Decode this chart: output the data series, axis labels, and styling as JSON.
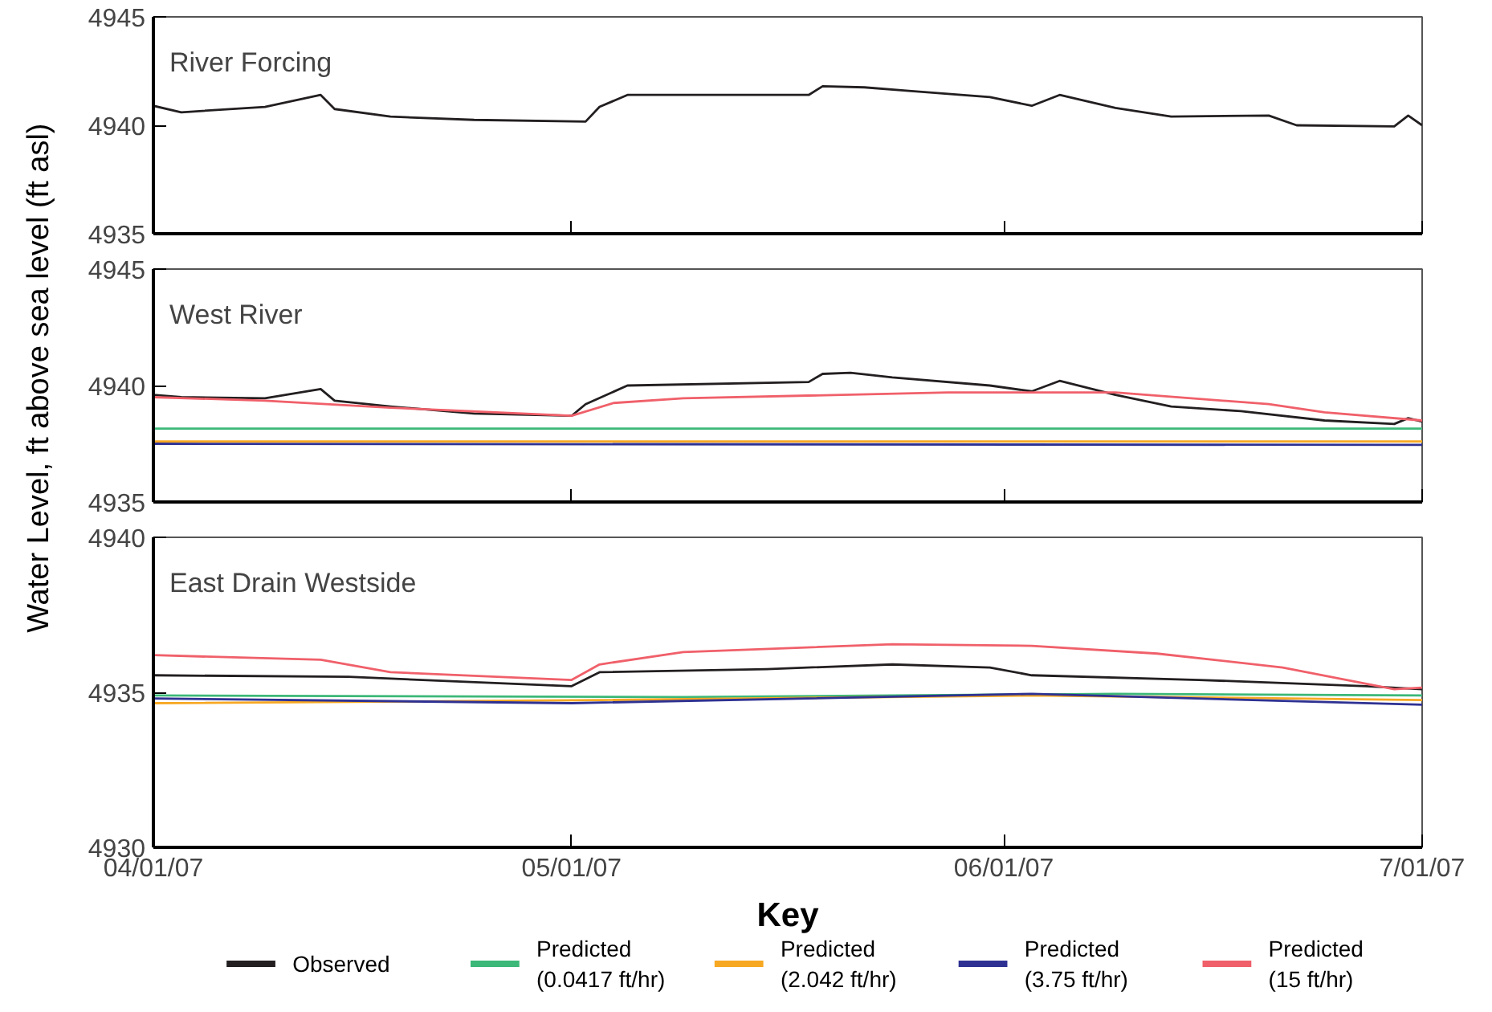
{
  "chart_data": [
    {
      "type": "line",
      "title": "River Forcing",
      "xlim": [
        "2007-04-01",
        "2007-07-01"
      ],
      "xticks": [
        {
          "value": "2007-04-01",
          "label": null
        },
        {
          "value": "2007-05-01",
          "label": null
        },
        {
          "value": "2007-06-01",
          "label": null
        },
        {
          "value": "2007-07-01",
          "label": null
        }
      ],
      "ylim": [
        4935,
        4945
      ],
      "yticks": [
        4935,
        4940,
        4945
      ],
      "tick_labels": "y",
      "grid": false,
      "legend": false,
      "series": [
        {
          "color": "#231f20",
          "x": [
            "2007-04-01",
            "2007-04-03",
            "2007-04-09",
            "2007-04-13",
            "2007-04-14",
            "2007-04-18",
            "2007-04-24",
            "2007-05-02",
            "2007-05-03",
            "2007-05-05",
            "2007-05-18",
            "2007-05-19",
            "2007-05-22",
            "2007-05-25",
            "2007-05-31",
            "2007-06-03",
            "2007-06-05",
            "2007-06-09",
            "2007-06-13",
            "2007-06-20",
            "2007-06-22",
            "2007-06-29",
            "2007-06-30",
            "2007-07-01"
          ],
          "values": [
            4940.9,
            4940.6,
            4940.85,
            4941.4,
            4940.75,
            4940.4,
            4940.25,
            4940.17,
            4940.85,
            4941.4,
            4941.4,
            4941.8,
            4941.75,
            4941.6,
            4941.3,
            4940.9,
            4941.4,
            4940.8,
            4940.4,
            4940.45,
            4940.0,
            4939.95,
            4940.45,
            4940.0
          ]
        }
      ]
    },
    {
      "type": "line",
      "title": "West River",
      "ylabel": "Water Level, ft above sea level (ft asl)",
      "xlim": [
        "2007-04-01",
        "2007-07-01"
      ],
      "xticks": [
        {
          "value": "2007-04-01",
          "label": null
        },
        {
          "value": "2007-05-01",
          "label": null
        },
        {
          "value": "2007-06-01",
          "label": null
        },
        {
          "value": "2007-07-01",
          "label": null
        }
      ],
      "ylim": [
        4935,
        4945
      ],
      "yticks": [
        4935,
        4940,
        4945
      ],
      "tick_labels": "y",
      "grid": false,
      "legend": false,
      "series": [
        {
          "color": "#3cb878",
          "x": [
            "2007-04-01",
            "2007-07-01"
          ],
          "values": [
            4938.15,
            4938.15
          ]
        },
        {
          "color": "#f7a823",
          "x": [
            "2007-04-01",
            "2007-07-01"
          ],
          "values": [
            4937.6,
            4937.6
          ]
        },
        {
          "color": "#2e3192",
          "x": [
            "2007-04-01",
            "2007-07-01"
          ],
          "values": [
            4937.5,
            4937.45
          ]
        },
        {
          "color": "#231f20",
          "x": [
            "2007-04-01",
            "2007-04-03",
            "2007-04-09",
            "2007-04-13",
            "2007-04-14",
            "2007-04-18",
            "2007-04-24",
            "2007-05-01",
            "2007-05-02",
            "2007-05-05",
            "2007-05-18",
            "2007-05-19",
            "2007-05-21",
            "2007-05-24",
            "2007-05-31",
            "2007-06-03",
            "2007-06-05",
            "2007-06-09",
            "2007-06-13",
            "2007-06-18",
            "2007-06-24",
            "2007-06-29",
            "2007-06-30",
            "2007-07-01"
          ],
          "values": [
            4939.6,
            4939.5,
            4939.45,
            4939.85,
            4939.35,
            4939.1,
            4938.8,
            4938.7,
            4939.2,
            4940.0,
            4940.15,
            4940.5,
            4940.55,
            4940.35,
            4940.0,
            4939.75,
            4940.2,
            4939.6,
            4939.1,
            4938.9,
            4938.5,
            4938.35,
            4938.6,
            4938.45
          ]
        },
        {
          "color": "#f0606a",
          "x": [
            "2007-04-01",
            "2007-04-09",
            "2007-04-18",
            "2007-05-01",
            "2007-05-04",
            "2007-05-09",
            "2007-05-28",
            "2007-06-09",
            "2007-06-20",
            "2007-06-24",
            "2007-07-01"
          ],
          "values": [
            4939.5,
            4939.35,
            4939.05,
            4938.7,
            4939.25,
            4939.45,
            4939.7,
            4939.7,
            4939.2,
            4938.85,
            4938.5
          ]
        }
      ]
    },
    {
      "type": "line",
      "title": "East Drain Westside",
      "legend_title": "Key",
      "xlim": [
        "2007-04-01",
        "2007-07-01"
      ],
      "xticks": [
        {
          "value": "2007-04-01",
          "label": "04/01/07"
        },
        {
          "value": "2007-05-01",
          "label": "05/01/07"
        },
        {
          "value": "2007-06-01",
          "label": "06/01/07"
        },
        {
          "value": "2007-07-01",
          "label": "7/01/07"
        }
      ],
      "ylim": [
        4930,
        4940
      ],
      "yticks": [
        4930,
        4935,
        4940
      ],
      "grid": false,
      "legend": "bottom",
      "series": [
        {
          "name": "Observed",
          "color": "#231f20",
          "x": [
            "2007-04-01",
            "2007-04-15",
            "2007-05-01",
            "2007-05-03",
            "2007-05-15",
            "2007-05-24",
            "2007-05-31",
            "2007-06-03",
            "2007-06-15",
            "2007-06-27",
            "2007-07-01"
          ],
          "values": [
            4935.55,
            4935.5,
            4935.2,
            4935.65,
            4935.75,
            4935.9,
            4935.8,
            4935.55,
            4935.4,
            4935.2,
            4935.1
          ]
        },
        {
          "name": "Predicted\n(0.0417 ft/hr)",
          "color": "#3cb878",
          "x": [
            "2007-04-01",
            "2007-05-09",
            "2007-06-09",
            "2007-07-01"
          ],
          "values": [
            4934.9,
            4934.85,
            4934.95,
            4934.9
          ]
        },
        {
          "name": "Predicted\n(2.042 ft/hr)",
          "color": "#f7a823",
          "x": [
            "2007-04-01",
            "2007-05-03",
            "2007-06-03",
            "2007-07-01"
          ],
          "values": [
            4934.65,
            4934.75,
            4934.9,
            4934.75
          ]
        },
        {
          "name": "Predicted\n(3.75 ft/hr)",
          "color": "#2e3192",
          "x": [
            "2007-04-01",
            "2007-05-01",
            "2007-06-03",
            "2007-07-01"
          ],
          "values": [
            4934.8,
            4934.65,
            4934.95,
            4934.6
          ]
        },
        {
          "name": "Predicted\n(15 ft/hr)",
          "color": "#f0606a",
          "x": [
            "2007-04-01",
            "2007-04-13",
            "2007-04-18",
            "2007-05-01",
            "2007-05-03",
            "2007-05-09",
            "2007-05-24",
            "2007-06-03",
            "2007-06-12",
            "2007-06-21",
            "2007-06-29",
            "2007-07-01"
          ],
          "values": [
            4936.2,
            4936.05,
            4935.65,
            4935.4,
            4935.9,
            4936.3,
            4936.55,
            4936.5,
            4936.25,
            4935.8,
            4935.1,
            4935.15
          ]
        }
      ]
    }
  ]
}
